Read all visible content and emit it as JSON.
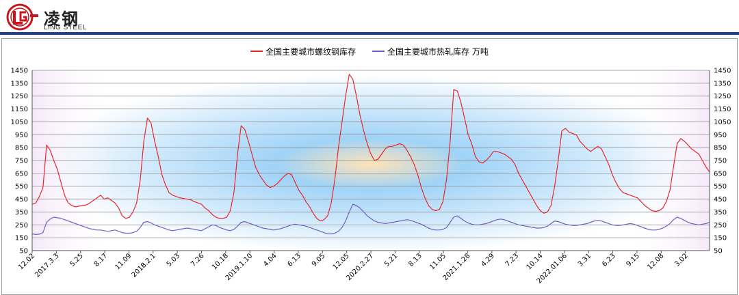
{
  "brand": {
    "name_cn": "凌钢",
    "name_en": "LING STEEL",
    "accent": "#c8161d",
    "bar_color": "#1f3f8f"
  },
  "chart_data": {
    "type": "line",
    "y_axis": {
      "min": 50,
      "max": 1450,
      "step": 100,
      "ticks": [
        50,
        150,
        250,
        350,
        450,
        550,
        650,
        750,
        850,
        950,
        1050,
        1150,
        1250,
        1350,
        1450
      ]
    },
    "x_ticks": [
      "12.02",
      "2017.3.3",
      "5.25",
      "8.17",
      "11.09",
      "2018.2.1",
      "5.03",
      "7.26",
      "10.18",
      "2019.1.10",
      "4.04",
      "6.13",
      "9.05",
      "12.05",
      "2020.2.27",
      "5.21",
      "8.13",
      "11.05",
      "2021.1.28",
      "4.29",
      "7.23",
      "10.14",
      "2022.01.06",
      "3.31",
      "6.23",
      "9.15",
      "12.08",
      "3.02"
    ],
    "grid": true,
    "legend_position": "top-center",
    "series": [
      {
        "name": "全国主要城市螺纹钢库存",
        "color": "#e8262a",
        "values": [
          410,
          420,
          470,
          540,
          870,
          830,
          750,
          680,
          580,
          480,
          420,
          400,
          390,
          395,
          400,
          405,
          420,
          440,
          460,
          480,
          450,
          460,
          440,
          420,
          380,
          320,
          300,
          310,
          350,
          420,
          600,
          900,
          1080,
          1040,
          900,
          780,
          640,
          560,
          500,
          480,
          470,
          460,
          455,
          450,
          445,
          430,
          420,
          410,
          380,
          360,
          330,
          310,
          300,
          300,
          310,
          360,
          500,
          800,
          1020,
          990,
          900,
          800,
          700,
          640,
          600,
          560,
          540,
          550,
          570,
          600,
          630,
          650,
          640,
          580,
          520,
          480,
          430,
          390,
          340,
          300,
          280,
          290,
          320,
          420,
          600,
          850,
          1050,
          1250,
          1420,
          1380,
          1250,
          1100,
          980,
          880,
          800,
          750,
          760,
          800,
          840,
          860,
          860,
          870,
          880,
          870,
          830,
          780,
          720,
          640,
          540,
          460,
          400,
          370,
          360,
          370,
          430,
          600,
          900,
          1300,
          1290,
          1200,
          1080,
          950,
          880,
          780,
          740,
          730,
          750,
          780,
          820,
          820,
          810,
          800,
          780,
          760,
          720,
          650,
          600,
          550,
          500,
          450,
          400,
          360,
          340,
          350,
          400,
          550,
          750,
          980,
          1000,
          970,
          960,
          950,
          900,
          870,
          840,
          820,
          840,
          860,
          840,
          780,
          720,
          640,
          580,
          530,
          500,
          490,
          480,
          470,
          460,
          430,
          400,
          380,
          360,
          355,
          360,
          380,
          430,
          520,
          700,
          880,
          920,
          900,
          870,
          840,
          820,
          800,
          750,
          700,
          660
        ]
      },
      {
        "name": "全国主要城市热轧库存 万吨",
        "color": "#7060c0",
        "values": [
          180,
          175,
          178,
          190,
          270,
          295,
          310,
          305,
          300,
          290,
          280,
          270,
          260,
          250,
          240,
          230,
          220,
          215,
          210,
          210,
          205,
          200,
          205,
          210,
          200,
          190,
          185,
          185,
          190,
          200,
          230,
          270,
          275,
          265,
          250,
          240,
          230,
          220,
          210,
          205,
          210,
          215,
          220,
          225,
          220,
          215,
          210,
          205,
          220,
          235,
          250,
          245,
          230,
          220,
          210,
          205,
          215,
          240,
          270,
          275,
          265,
          255,
          245,
          235,
          225,
          220,
          215,
          210,
          215,
          220,
          230,
          240,
          250,
          255,
          250,
          245,
          240,
          230,
          220,
          210,
          200,
          190,
          180,
          180,
          185,
          200,
          230,
          280,
          350,
          410,
          400,
          380,
          350,
          320,
          300,
          280,
          270,
          265,
          260,
          265,
          270,
          275,
          280,
          285,
          290,
          285,
          275,
          265,
          255,
          240,
          225,
          215,
          210,
          210,
          215,
          230,
          270,
          310,
          320,
          300,
          280,
          265,
          255,
          250,
          250,
          255,
          260,
          270,
          280,
          290,
          295,
          290,
          280,
          270,
          260,
          250,
          245,
          240,
          235,
          230,
          225,
          225,
          230,
          240,
          260,
          280,
          275,
          265,
          255,
          250,
          245,
          245,
          250,
          255,
          260,
          270,
          280,
          285,
          280,
          270,
          260,
          250,
          245,
          245,
          250,
          255,
          260,
          255,
          245,
          235,
          225,
          215,
          210,
          210,
          215,
          225,
          240,
          260,
          290,
          310,
          300,
          285,
          270,
          260,
          255,
          250,
          255,
          260,
          270
        ]
      }
    ]
  }
}
